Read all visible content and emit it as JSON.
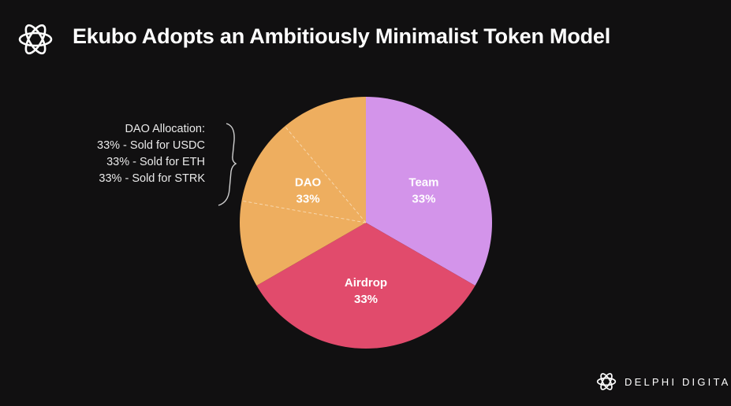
{
  "header": {
    "title": "Ekubo Adopts an Ambitiously Minimalist Token Model",
    "logo_icon": "delphi-digital-knot-icon"
  },
  "chart_data": {
    "type": "pie",
    "slices": [
      {
        "label": "Team",
        "value": 33,
        "value_label": "33%",
        "color": "#d394ea"
      },
      {
        "label": "Airdrop",
        "value": 33,
        "value_label": "33%",
        "color": "#e14b6c"
      },
      {
        "label": "DAO",
        "value": 33,
        "value_label": "33%",
        "color": "#eeae5f"
      }
    ],
    "dao_subdivisions": 3,
    "annotation": {
      "title": "DAO Allocation:",
      "lines": [
        "33% - Sold for USDC",
        "33% - Sold for ETH",
        "33% - Sold for STRK"
      ]
    }
  },
  "footer": {
    "brand": "DELPHI DIGITAL",
    "logo_icon": "delphi-digital-knot-icon"
  }
}
